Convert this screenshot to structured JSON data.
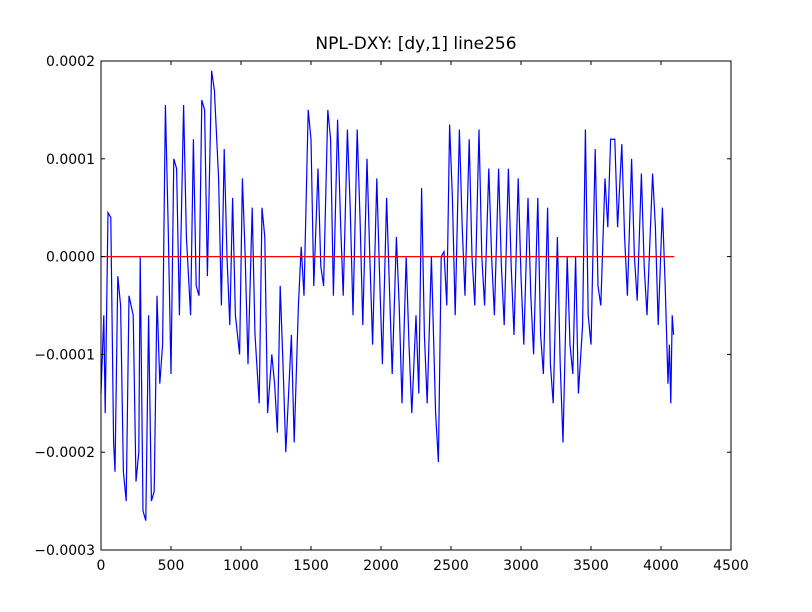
{
  "chart_data": {
    "type": "line",
    "title": "NPL-DXY: [dy,1] line256",
    "xlim": [
      0,
      4500
    ],
    "xticks": [
      0,
      500,
      1000,
      1500,
      2000,
      2500,
      3000,
      3500,
      4000,
      4500
    ],
    "ylim": [
      -0.0003,
      0.0002
    ],
    "yticks": [
      {
        "value": -0.0003,
        "label": "−0.0003"
      },
      {
        "value": -0.0002,
        "label": "−0.0002"
      },
      {
        "value": -0.0001,
        "label": "−0.0001"
      },
      {
        "value": 0,
        "label": "0.0000"
      },
      {
        "value": 0.0001,
        "label": "0.0001"
      },
      {
        "value": 0.0002,
        "label": "0.0002"
      }
    ],
    "series": [
      {
        "color": "#0000ff",
        "x": [
          0,
          20,
          30,
          50,
          70,
          90,
          100,
          120,
          140,
          160,
          180,
          200,
          230,
          250,
          270,
          280,
          300,
          320,
          340,
          360,
          380,
          400,
          420,
          440,
          460,
          480,
          500,
          520,
          540,
          560,
          590,
          610,
          640,
          660,
          680,
          700,
          720,
          740,
          760,
          790,
          810,
          840,
          860,
          880,
          900,
          920,
          940,
          960,
          990,
          1010,
          1030,
          1050,
          1080,
          1100,
          1130,
          1150,
          1170,
          1190,
          1220,
          1240,
          1260,
          1280,
          1300,
          1320,
          1340,
          1360,
          1380,
          1410,
          1430,
          1450,
          1480,
          1500,
          1520,
          1550,
          1570,
          1590,
          1620,
          1640,
          1660,
          1690,
          1710,
          1730,
          1760,
          1780,
          1800,
          1830,
          1850,
          1870,
          1900,
          1920,
          1940,
          1970,
          1990,
          2010,
          2040,
          2060,
          2080,
          2110,
          2130,
          2150,
          2180,
          2200,
          2220,
          2250,
          2270,
          2290,
          2310,
          2330,
          2360,
          2390,
          2410,
          2430,
          2450,
          2470,
          2490,
          2510,
          2530,
          2560,
          2580,
          2600,
          2630,
          2650,
          2670,
          2700,
          2720,
          2740,
          2770,
          2790,
          2810,
          2840,
          2860,
          2880,
          2910,
          2930,
          2950,
          2980,
          3000,
          3020,
          3050,
          3070,
          3090,
          3120,
          3140,
          3160,
          3190,
          3210,
          3230,
          3260,
          3280,
          3300,
          3330,
          3350,
          3370,
          3390,
          3410,
          3440,
          3460,
          3480,
          3500,
          3530,
          3550,
          3570,
          3600,
          3620,
          3640,
          3670,
          3690,
          3720,
          3740,
          3760,
          3790,
          3810,
          3830,
          3860,
          3880,
          3900,
          3940,
          3960,
          3980,
          4010,
          4030,
          4050,
          4060,
          4070,
          4080,
          4090
        ],
        "values": [
          -0.00014,
          -6e-05,
          -0.00016,
          4.5e-05,
          4e-05,
          -0.00019,
          -0.00022,
          -2e-05,
          -5e-05,
          -0.00022,
          -0.00025,
          -4e-05,
          -6e-05,
          -0.00023,
          -0.0002,
          0,
          -0.00026,
          -0.00027,
          -6e-05,
          -0.00025,
          -0.00024,
          -4e-05,
          -0.00013,
          -9e-05,
          0.000155,
          3e-05,
          -0.00012,
          0.0001,
          9e-05,
          -6e-05,
          0.000155,
          2e-05,
          -6e-05,
          0.00012,
          -3e-05,
          -4e-05,
          0.00016,
          0.00015,
          -2e-05,
          0.00019,
          0.00017,
          8e-05,
          -5e-05,
          0.00011,
          0,
          -7e-05,
          6e-05,
          -6e-05,
          -0.0001,
          8e-05,
          0,
          -0.00011,
          5e-05,
          -8e-05,
          -0.00015,
          5e-05,
          2e-05,
          -0.00016,
          -0.0001,
          -0.00013,
          -0.00018,
          -3e-05,
          -0.00011,
          -0.0002,
          -0.00014,
          -8e-05,
          -0.00019,
          -5e-05,
          1e-05,
          -4e-05,
          0.00015,
          0.00012,
          -3e-05,
          9e-05,
          -1e-05,
          -3e-05,
          0.00015,
          0.00012,
          -4e-05,
          0.00014,
          4e-05,
          -4e-05,
          0.00013,
          5e-05,
          -6e-05,
          0.00013,
          4e-05,
          -7e-05,
          0.0001,
          0,
          -9e-05,
          8e-05,
          -2e-05,
          -0.00011,
          6e-05,
          -3e-05,
          -0.00012,
          2e-05,
          -5e-05,
          -0.00015,
          0,
          -9e-05,
          -0.00016,
          -6e-05,
          -0.00014,
          7e-05,
          -8e-05,
          -0.00015,
          0,
          -0.00016,
          -0.00021,
          0,
          5e-06,
          -5e-05,
          0.000135,
          6e-05,
          -6e-05,
          0.00013,
          3e-05,
          -4e-05,
          0.00012,
          0,
          -5e-05,
          0.00013,
          0,
          -5e-05,
          9e-05,
          0,
          -6e-05,
          9e-05,
          -1e-05,
          -7e-05,
          9e-05,
          -1e-05,
          -8e-05,
          8e-05,
          -2e-05,
          -9e-05,
          6e-05,
          -4e-05,
          -0.0001,
          6e-05,
          -8e-05,
          -0.00012,
          5e-05,
          -0.00011,
          -0.00015,
          2e-05,
          -0.00011,
          -0.00019,
          0,
          -9e-05,
          -0.00012,
          0,
          -0.00014,
          -7e-05,
          0.00013,
          -6e-05,
          -9e-05,
          0.00011,
          -3e-05,
          -5e-05,
          8e-05,
          3e-05,
          0.00012,
          0.00012,
          3e-05,
          0.000115,
          2e-05,
          -4e-05,
          0.0001,
          0,
          -4.5e-05,
          8.5e-05,
          -1e-05,
          -6e-05,
          8.5e-05,
          3e-05,
          -7e-05,
          5e-05,
          -3e-05,
          -0.00013,
          -9e-05,
          -0.00015,
          -6e-05,
          -8e-05
        ]
      },
      {
        "color": "#ff0000",
        "x": [
          0,
          4095
        ],
        "values": [
          0,
          0
        ]
      }
    ]
  }
}
